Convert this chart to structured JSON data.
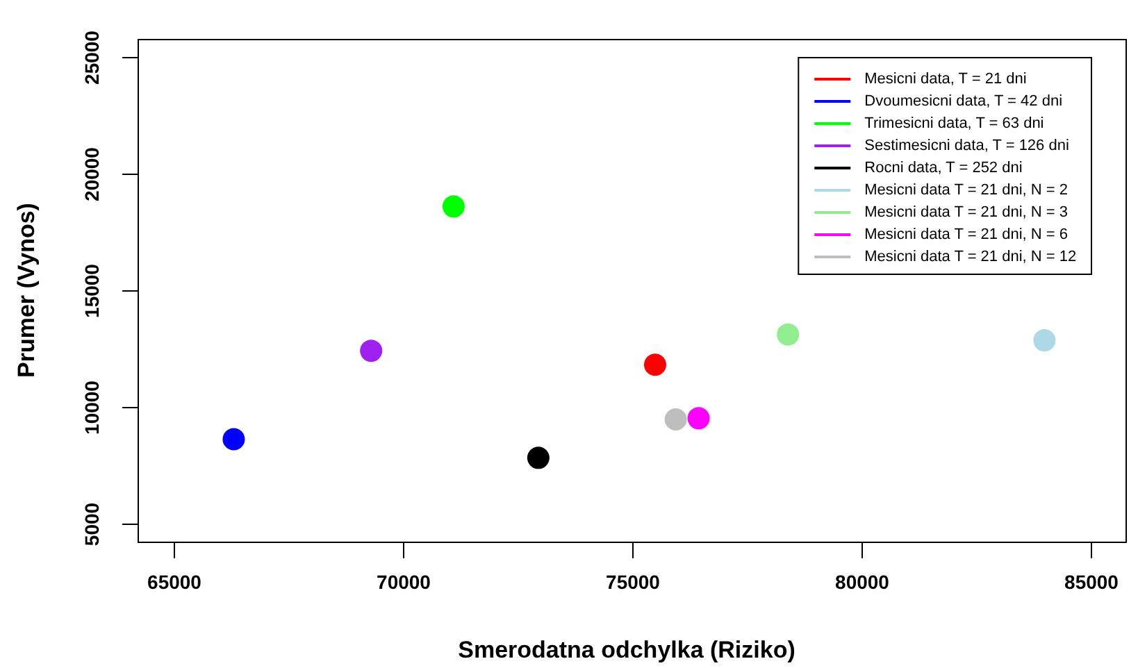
{
  "chart_data": {
    "type": "scatter",
    "xlabel": "Smerodatna odchylka (Riziko)",
    "ylabel": "Prumer (Vynos)",
    "xlim": [
      64200,
      85800
    ],
    "xticks": [
      65000,
      70000,
      75000,
      80000,
      85000
    ],
    "ylim": [
      4200,
      25800
    ],
    "yticks": [
      5000,
      10000,
      15000,
      20000,
      25000
    ],
    "grid": false,
    "legend": "top right",
    "marker": "circle",
    "series": [
      {
        "name": "Mesicni data, T = 21 dni",
        "color": "#ff0000",
        "x": [
          75500
        ],
        "values": [
          11800
        ]
      },
      {
        "name": "Dvoumesicni data, T = 42 dni",
        "color": "#0000ff",
        "x": [
          66300
        ],
        "values": [
          8600
        ]
      },
      {
        "name": "Trimesicni data, T = 63 dni",
        "color": "#00ff00",
        "x": [
          71100
        ],
        "values": [
          18600
        ]
      },
      {
        "name": "Sestimesicni data, T = 126 dni",
        "color": "#a020f0",
        "x": [
          69300
        ],
        "values": [
          12400
        ]
      },
      {
        "name": "Rocni data, T = 252 dni",
        "color": "#000000",
        "x": [
          72950
        ],
        "values": [
          7800
        ]
      },
      {
        "name": "Mesicni data T = 21 dni, N = 2",
        "color": "#add8e6",
        "x": [
          84000
        ],
        "values": [
          12850
        ]
      },
      {
        "name": "Mesicni data T = 21 dni, N = 3",
        "color": "#90ee90",
        "x": [
          78400
        ],
        "values": [
          13100
        ]
      },
      {
        "name": "Mesicni data T = 21 dni, N = 6",
        "color": "#ff00ff",
        "x": [
          76450
        ],
        "values": [
          9500
        ]
      },
      {
        "name": "Mesicni data T = 21 dni, N = 12",
        "color": "#bebebe",
        "x": [
          75950
        ],
        "values": [
          9450
        ]
      }
    ]
  }
}
